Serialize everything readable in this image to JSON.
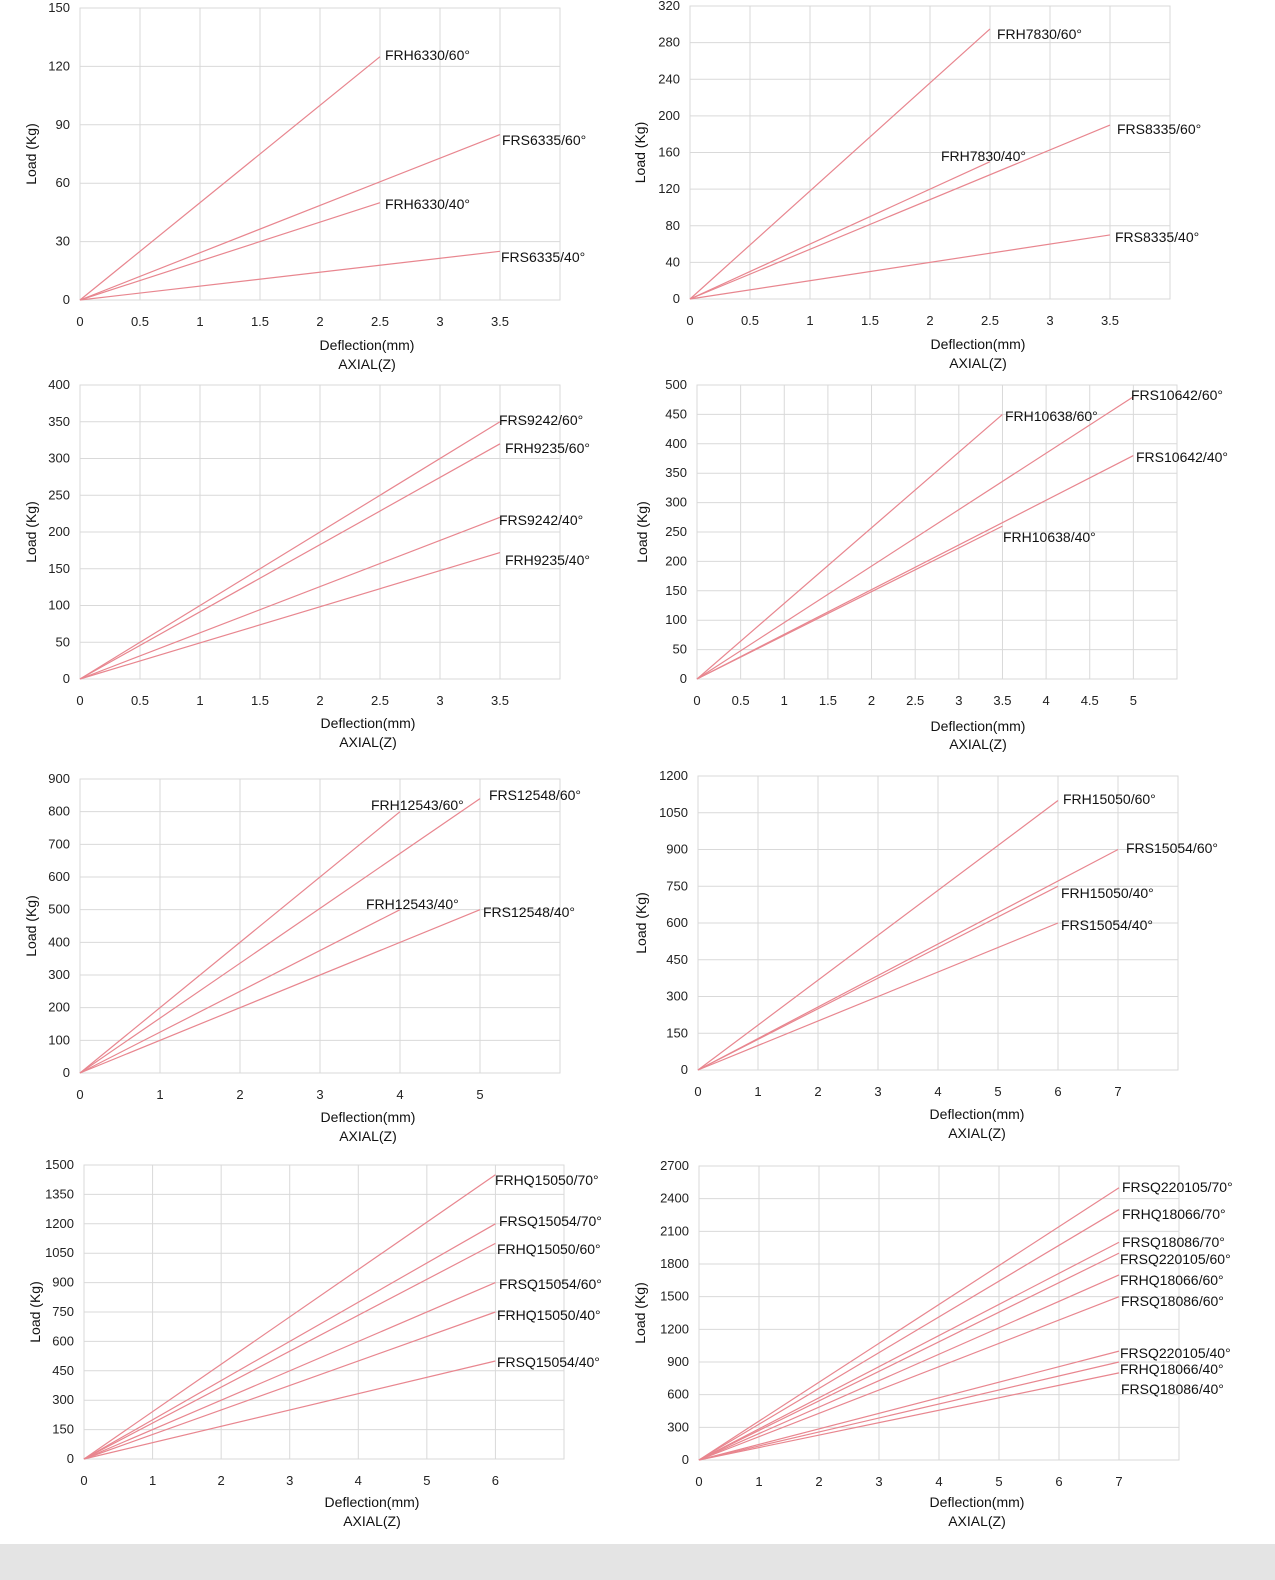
{
  "colors": {
    "series_line": "#e8868f",
    "grid": "#d9d9d9",
    "text": "#111111",
    "footer": "#e4e4e4"
  },
  "chart_data": [
    {
      "type": "line",
      "xlabel": "Deflection(mm)",
      "subtitle": "AXIAL(Z)",
      "ylabel": "Load (Kg)",
      "xlim": [
        0,
        4
      ],
      "ylim": [
        0,
        150
      ],
      "x_ticks": [
        0,
        0.5,
        1,
        1.5,
        2,
        2.5,
        3,
        3.5
      ],
      "x_tick_labels": [
        "0",
        "0.5",
        "1",
        "1.5",
        "2",
        "2.5",
        "3",
        "3.5"
      ],
      "y_ticks": [
        0,
        30,
        60,
        90,
        120,
        150
      ],
      "series": [
        {
          "name": "FRH6330/60°",
          "x": [
            0,
            2.5
          ],
          "y": [
            0,
            125
          ]
        },
        {
          "name": "FRS6335/60°",
          "x": [
            0,
            3.5
          ],
          "y": [
            0,
            85
          ]
        },
        {
          "name": "FRH6330/40°",
          "x": [
            0,
            2.5
          ],
          "y": [
            0,
            50
          ]
        },
        {
          "name": "FRS6335/40°",
          "x": [
            0,
            3.5
          ],
          "y": [
            0,
            25
          ]
        }
      ]
    },
    {
      "type": "line",
      "xlabel": "Deflection(mm)",
      "subtitle": "AXIAL(Z)",
      "ylabel": "Load (Kg)",
      "xlim": [
        0,
        4
      ],
      "ylim": [
        0,
        320
      ],
      "x_ticks": [
        0,
        0.5,
        1,
        1.5,
        2,
        2.5,
        3,
        3.5
      ],
      "x_tick_labels": [
        "0",
        "0.5",
        "1",
        "1.5",
        "2",
        "2.5",
        "3",
        "3.5"
      ],
      "y_ticks": [
        0,
        40,
        80,
        120,
        160,
        200,
        240,
        280,
        320
      ],
      "series": [
        {
          "name": "FRH7830/60°",
          "x": [
            0,
            2.5
          ],
          "y": [
            0,
            295
          ]
        },
        {
          "name": "FRS8335/60°",
          "x": [
            0,
            3.5
          ],
          "y": [
            0,
            190
          ]
        },
        {
          "name": "FRH7830/40°",
          "x": [
            0,
            2.5
          ],
          "y": [
            0,
            150
          ]
        },
        {
          "name": "FRS8335/40°",
          "x": [
            0,
            3.5
          ],
          "y": [
            0,
            70
          ]
        }
      ]
    },
    {
      "type": "line",
      "xlabel": "Deflection(mm)",
      "subtitle": "AXIAL(Z)",
      "ylabel": "Load (Kg)",
      "xlim": [
        0,
        4
      ],
      "ylim": [
        0,
        400
      ],
      "x_ticks": [
        0,
        0.5,
        1,
        1.5,
        2,
        2.5,
        3,
        3.5
      ],
      "x_tick_labels": [
        "0",
        "0.5",
        "1",
        "1.5",
        "2",
        "2.5",
        "3",
        "3.5"
      ],
      "y_ticks": [
        0,
        50,
        100,
        150,
        200,
        250,
        300,
        350,
        400
      ],
      "series": [
        {
          "name": "FRS9242/60°",
          "x": [
            0,
            3.5
          ],
          "y": [
            0,
            350
          ]
        },
        {
          "name": "FRH9235/60°",
          "x": [
            0,
            3.5
          ],
          "y": [
            0,
            320
          ]
        },
        {
          "name": "FRS9242/40°",
          "x": [
            0,
            3.5
          ],
          "y": [
            0,
            220
          ]
        },
        {
          "name": "FRH9235/40°",
          "x": [
            0,
            3.5
          ],
          "y": [
            0,
            172
          ]
        }
      ]
    },
    {
      "type": "line",
      "xlabel": "Deflection(mm)",
      "subtitle": "AXIAL(Z)",
      "ylabel": "Load (Kg)",
      "xlim": [
        0,
        5.5
      ],
      "ylim": [
        0,
        500
      ],
      "x_ticks": [
        0,
        0.5,
        1,
        1.5,
        2,
        2.5,
        3,
        3.5,
        4,
        4.5,
        5
      ],
      "x_tick_labels": [
        "0",
        "0.5",
        "1",
        "1.5",
        "2",
        "2.5",
        "3",
        "3.5",
        "4",
        "4.5",
        "5"
      ],
      "y_ticks": [
        0,
        50,
        100,
        150,
        200,
        250,
        300,
        350,
        400,
        450,
        500
      ],
      "series": [
        {
          "name": "FRH10638/60°",
          "x": [
            0,
            3.5
          ],
          "y": [
            0,
            450
          ]
        },
        {
          "name": "FRS10642/60°",
          "x": [
            0,
            5
          ],
          "y": [
            0,
            480
          ]
        },
        {
          "name": "FRS10642/40°",
          "x": [
            0,
            5
          ],
          "y": [
            0,
            380
          ]
        },
        {
          "name": "FRH10638/40°",
          "x": [
            0,
            3.5
          ],
          "y": [
            0,
            260
          ]
        }
      ]
    },
    {
      "type": "line",
      "xlabel": "Deflection(mm)",
      "subtitle": "AXIAL(Z)",
      "ylabel": "Load (Kg)",
      "xlim": [
        0,
        6
      ],
      "ylim": [
        0,
        900
      ],
      "x_ticks": [
        0,
        1,
        2,
        3,
        4,
        5
      ],
      "x_tick_labels": [
        "0",
        "1",
        "2",
        "3",
        "4",
        "5"
      ],
      "y_ticks": [
        0,
        100,
        200,
        300,
        400,
        500,
        600,
        700,
        800,
        900
      ],
      "series": [
        {
          "name": "FRH12543/60°",
          "x": [
            0,
            4
          ],
          "y": [
            0,
            800
          ]
        },
        {
          "name": "FRS12548/60°",
          "x": [
            0,
            5
          ],
          "y": [
            0,
            840
          ]
        },
        {
          "name": "FRH12543/40°",
          "x": [
            0,
            4
          ],
          "y": [
            0,
            500
          ]
        },
        {
          "name": "FRS12548/40°",
          "x": [
            0,
            5
          ],
          "y": [
            0,
            500
          ]
        }
      ]
    },
    {
      "type": "line",
      "xlabel": "Deflection(mm)",
      "subtitle": "AXIAL(Z)",
      "ylabel": "Load (Kg)",
      "xlim": [
        0,
        8
      ],
      "ylim": [
        0,
        1200
      ],
      "x_ticks": [
        0,
        1,
        2,
        3,
        4,
        5,
        6,
        7
      ],
      "x_tick_labels": [
        "0",
        "1",
        "2",
        "3",
        "4",
        "5",
        "6",
        "7"
      ],
      "y_ticks": [
        0,
        150,
        300,
        450,
        600,
        750,
        900,
        1050,
        1200
      ],
      "series": [
        {
          "name": "FRH15050/60°",
          "x": [
            0,
            6
          ],
          "y": [
            0,
            1100
          ]
        },
        {
          "name": "FRS15054/60°",
          "x": [
            0,
            7
          ],
          "y": [
            0,
            900
          ]
        },
        {
          "name": "FRH15050/40°",
          "x": [
            0,
            6
          ],
          "y": [
            0,
            750
          ]
        },
        {
          "name": "FRS15054/40°",
          "x": [
            0,
            6
          ],
          "y": [
            0,
            600
          ]
        }
      ]
    },
    {
      "type": "line",
      "xlabel": "Deflection(mm)",
      "subtitle": "AXIAL(Z)",
      "ylabel": "Load (Kg)",
      "xlim": [
        0,
        7
      ],
      "ylim": [
        0,
        1500
      ],
      "x_ticks": [
        0,
        1,
        2,
        3,
        4,
        5,
        6
      ],
      "x_tick_labels": [
        "0",
        "1",
        "2",
        "3",
        "4",
        "5",
        "6"
      ],
      "y_ticks": [
        0,
        150,
        300,
        450,
        600,
        750,
        900,
        1050,
        1200,
        1350,
        1500
      ],
      "series": [
        {
          "name": "FRHQ15050/70°",
          "x": [
            0,
            6
          ],
          "y": [
            0,
            1450
          ]
        },
        {
          "name": "FRSQ15054/70°",
          "x": [
            0,
            6
          ],
          "y": [
            0,
            1200
          ]
        },
        {
          "name": "FRHQ15050/60°",
          "x": [
            0,
            6
          ],
          "y": [
            0,
            1100
          ]
        },
        {
          "name": "FRSQ15054/60°",
          "x": [
            0,
            6
          ],
          "y": [
            0,
            900
          ]
        },
        {
          "name": "FRHQ15050/40°",
          "x": [
            0,
            6
          ],
          "y": [
            0,
            750
          ]
        },
        {
          "name": "FRSQ15054/40°",
          "x": [
            0,
            6
          ],
          "y": [
            0,
            500
          ]
        }
      ]
    },
    {
      "type": "line",
      "xlabel": "Deflection(mm)",
      "subtitle": "AXIAL(Z)",
      "ylabel": "Load (Kg)",
      "xlim": [
        0,
        8
      ],
      "ylim": [
        0,
        2700
      ],
      "x_ticks": [
        0,
        1,
        2,
        3,
        4,
        5,
        6,
        7
      ],
      "x_tick_labels": [
        "0",
        "1",
        "2",
        "3",
        "4",
        "5",
        "6",
        "7"
      ],
      "y_ticks": [
        0,
        300,
        600,
        900,
        1200,
        1500,
        1800,
        2100,
        2400,
        2700
      ],
      "series": [
        {
          "name": "FRSQ220105/70°",
          "x": [
            0,
            7
          ],
          "y": [
            0,
            2500
          ]
        },
        {
          "name": "FRHQ18066/70°",
          "x": [
            0,
            7
          ],
          "y": [
            0,
            2300
          ]
        },
        {
          "name": "FRSQ18086/70°",
          "x": [
            0,
            7
          ],
          "y": [
            0,
            2000
          ]
        },
        {
          "name": "FRSQ220105/60°",
          "x": [
            0,
            7
          ],
          "y": [
            0,
            1900
          ]
        },
        {
          "name": "FRHQ18066/60°",
          "x": [
            0,
            7
          ],
          "y": [
            0,
            1700
          ]
        },
        {
          "name": "FRSQ18086/60°",
          "x": [
            0,
            7
          ],
          "y": [
            0,
            1500
          ]
        },
        {
          "name": "FRSQ220105/40°",
          "x": [
            0,
            7
          ],
          "y": [
            0,
            1000
          ]
        },
        {
          "name": "FRHQ18066/40°",
          "x": [
            0,
            7
          ],
          "y": [
            0,
            900
          ]
        },
        {
          "name": "FRSQ18086/40°",
          "x": [
            0,
            7
          ],
          "y": [
            0,
            800
          ]
        }
      ]
    }
  ]
}
